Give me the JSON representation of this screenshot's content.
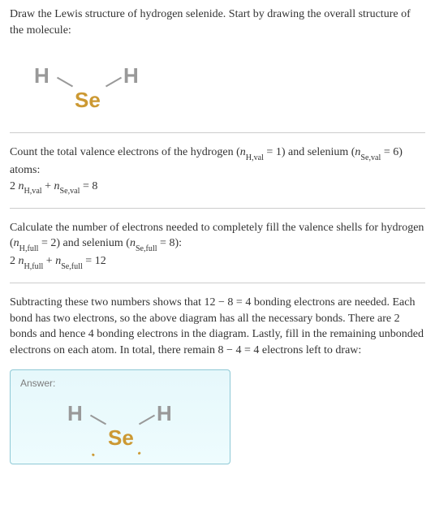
{
  "intro": {
    "text": "Draw the Lewis structure of hydrogen selenide. Start by drawing the overall structure of the molecule:"
  },
  "molecule1": {
    "h1": "H",
    "h2": "H",
    "se": "Se",
    "h_color": "#999999",
    "se_color": "#cc9933",
    "bond_color": "#999999"
  },
  "step2": {
    "prefix": "Count the total valence electrons of the hydrogen (",
    "n1_var": "n",
    "n1_sub": "H,val",
    "n1_eq": " = 1) and selenium (",
    "n2_var": "n",
    "n2_sub": "Se,val",
    "n2_eq": " = 6) atoms:",
    "eq_prefix": "2 ",
    "eq_var1": "n",
    "eq_sub1": "H,val",
    "eq_plus": " + ",
    "eq_var2": "n",
    "eq_sub2": "Se,val",
    "eq_result": " = 8"
  },
  "step3": {
    "prefix": "Calculate the number of electrons needed to completely fill the valence shells for hydrogen (",
    "n1_var": "n",
    "n1_sub": "H,full",
    "n1_eq": " = 2) and selenium (",
    "n2_var": "n",
    "n2_sub": "Se,full",
    "n2_eq": " = 8):",
    "eq_prefix": "2 ",
    "eq_var1": "n",
    "eq_sub1": "H,full",
    "eq_plus": " + ",
    "eq_var2": "n",
    "eq_sub2": "Se,full",
    "eq_result": " = 12"
  },
  "step4": {
    "text": "Subtracting these two numbers shows that 12 − 8 = 4 bonding electrons are needed. Each bond has two electrons, so the above diagram has all the necessary bonds. There are 2 bonds and hence 4 bonding electrons in the diagram. Lastly, fill in the remaining unbonded electrons on each atom. In total, there remain 8 − 4 = 4 electrons left to draw:"
  },
  "answer": {
    "label": "Answer:",
    "h1": "H",
    "h2": "H",
    "se": "Se",
    "lonepair": "..",
    "box_border": "#8ec9d6",
    "box_bg_top": "#e6f8fb",
    "box_bg_bottom": "#eefcfe"
  }
}
